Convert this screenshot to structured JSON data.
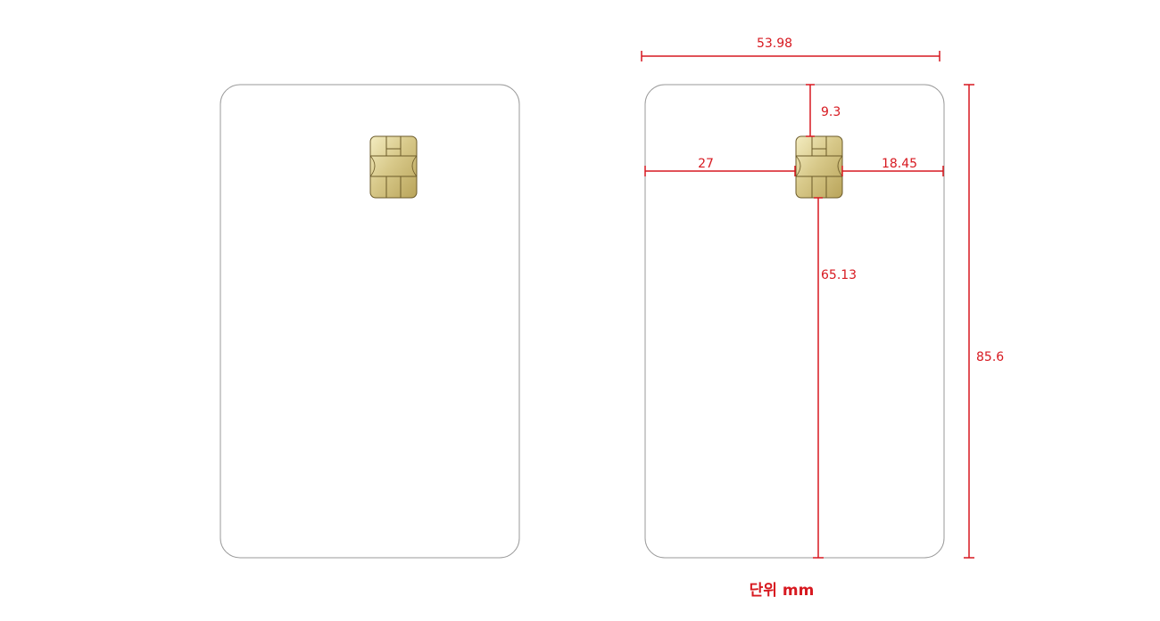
{
  "card_spec": {
    "dimensions": {
      "card_width": "53.98",
      "card_height": "85.6",
      "chip_top_offset": "9.3",
      "chip_left_offset": "27",
      "chip_right_offset": "18.45",
      "chip_bottom_offset": "65.13"
    },
    "unit_label": "단위 mm"
  },
  "colors": {
    "dimension_red": "#d71920",
    "card_outline": "#9a9a9a",
    "chip_gold": "#c9b56a"
  }
}
